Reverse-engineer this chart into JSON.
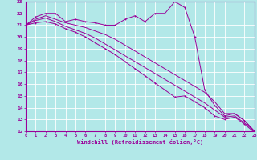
{
  "xlabel": "Windchill (Refroidissement éolien,°C)",
  "xlim": [
    0,
    23
  ],
  "ylim": [
    12,
    23
  ],
  "yticks": [
    12,
    13,
    14,
    15,
    16,
    17,
    18,
    19,
    20,
    21,
    22,
    23
  ],
  "xticks": [
    0,
    1,
    2,
    3,
    4,
    5,
    6,
    7,
    8,
    9,
    10,
    11,
    12,
    13,
    14,
    15,
    16,
    17,
    18,
    19,
    20,
    21,
    22,
    23
  ],
  "bg_color": "#b2e8e8",
  "line_color": "#990099",
  "grid_color": "#ffffff",
  "x": [
    0,
    1,
    2,
    3,
    4,
    5,
    6,
    7,
    8,
    9,
    10,
    11,
    12,
    13,
    14,
    15,
    16,
    17,
    18,
    19,
    20,
    21,
    22,
    23
  ],
  "series_top": [
    21.0,
    21.7,
    22.0,
    22.0,
    21.3,
    21.5,
    21.3,
    21.2,
    21.0,
    21.0,
    21.5,
    21.8,
    21.3,
    22.0,
    22.0,
    23.0,
    22.5,
    20.0,
    15.5,
    14.2,
    13.3,
    13.5,
    12.9,
    12.0
  ],
  "series_line1": [
    21.0,
    21.5,
    21.8,
    21.5,
    21.2,
    21.0,
    20.8,
    20.5,
    20.2,
    19.8,
    19.3,
    18.8,
    18.3,
    17.8,
    17.3,
    16.8,
    16.3,
    15.8,
    15.3,
    14.5,
    13.5,
    13.5,
    12.9,
    12.0
  ],
  "series_line2": [
    21.0,
    21.4,
    21.6,
    21.3,
    20.9,
    20.6,
    20.3,
    19.9,
    19.4,
    18.9,
    18.4,
    17.9,
    17.4,
    16.9,
    16.4,
    15.9,
    15.4,
    14.9,
    14.4,
    13.8,
    13.2,
    13.3,
    12.7,
    12.0
  ],
  "series_bottom": [
    21.0,
    21.2,
    21.3,
    21.1,
    20.7,
    20.4,
    20.0,
    19.5,
    19.0,
    18.5,
    17.9,
    17.3,
    16.7,
    16.1,
    15.5,
    14.9,
    15.0,
    14.5,
    14.0,
    13.3,
    13.0,
    13.2,
    12.6,
    11.9
  ]
}
